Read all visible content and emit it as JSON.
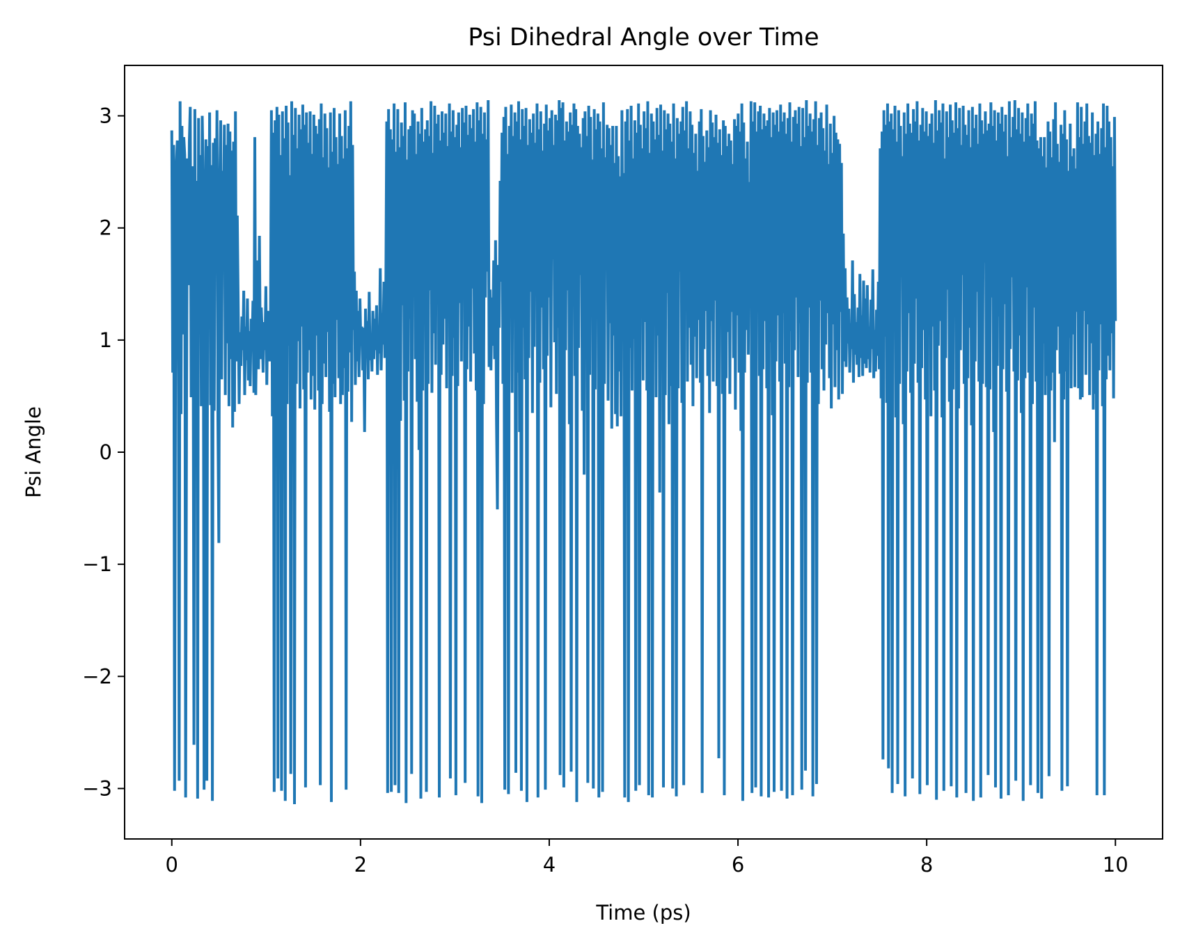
{
  "chart_data": {
    "type": "line",
    "title": "Psi Dihedral Angle over Time",
    "xlabel": "Time (ps)",
    "ylabel": "Psi Angle",
    "xlim": [
      -0.5,
      10.5
    ],
    "ylim": [
      -3.45,
      3.45
    ],
    "x_ticks": [
      0,
      2,
      4,
      6,
      8,
      10
    ],
    "y_ticks": [
      -3,
      -2,
      -1,
      0,
      1,
      2,
      3
    ],
    "x_tick_labels": [
      "0",
      "2",
      "4",
      "6",
      "8",
      "10"
    ],
    "y_tick_labels": [
      "−3",
      "−2",
      "−1",
      "0",
      "1",
      "2",
      "3"
    ],
    "grid": false,
    "legend": "none",
    "series": [
      {
        "color": "#1f77b4",
        "sample_interval_ps": 0.01,
        "x_start": 0,
        "x_end": 10,
        "values": [
          2.87,
          0.71,
          2.74,
          -3.02,
          0.65,
          2.59,
          2.78,
          1.32,
          -2.93,
          3.13,
          0.34,
          2.91,
          1.05,
          2.81,
          2.65,
          -3.08,
          0.45,
          2.62,
          1.49,
          2.77,
          3.08,
          0.49,
          2.55,
          1.87,
          -2.61,
          3.06,
          0.61,
          2.42,
          -3.09,
          2.98,
          1.08,
          2.65,
          0.41,
          3.0,
          2.45,
          -3.01,
          0.26,
          2.79,
          -2.93,
          2.73,
          1.34,
          3.03,
          0.42,
          2.56,
          -3.11,
          2.76,
          0.37,
          2.8,
          1.81,
          3.05,
          0.29,
          -0.81,
          2.41,
          2.96,
          0.65,
          2.51,
          1.98,
          2.92,
          0.51,
          2.74,
          0.97,
          2.93,
          0.41,
          2.86,
          0.83,
          2.69,
          0.22,
          2.77,
          0.36,
          3.04,
          0.81,
          2.11,
          1.31,
          0.43,
          1.07,
          0.77,
          1.21,
          0.91,
          1.44,
          0.51,
          1.12,
          0.82,
          1.37,
          0.64,
          1.08,
          0.59,
          1.19,
          0.92,
          1.35,
          0.53,
          2.81,
          0.51,
          1.15,
          1.71,
          0.74,
          1.93,
          0.83,
          1.29,
          1.06,
          0.71,
          1.16,
          0.91,
          1.48,
          0.6,
          1.26,
          1.02,
          0.81,
          1.13,
          3.05,
          0.32,
          2.85,
          -3.03,
          2.96,
          0.59,
          3.08,
          -2.91,
          3.01,
          0.48,
          2.65,
          -3.02,
          3.04,
          0.74,
          2.8,
          -3.11,
          3.09,
          0.43,
          2.94,
          0.95,
          2.47,
          -2.87,
          3.13,
          0.52,
          2.83,
          -3.14,
          3.07,
          0.61,
          2.71,
          0.99,
          3.01,
          0.39,
          2.88,
          1.12,
          3.1,
          0.56,
          2.92,
          -2.99,
          3.03,
          0.71,
          2.76,
          0.91,
          3.04,
          0.47,
          2.66,
          0.68,
          3.01,
          0.38,
          2.91,
          1.04,
          2.84,
          0.55,
          2.97,
          -2.97,
          3.11,
          0.43,
          2.63,
          0.79,
          3.02,
          0.67,
          2.89,
          1.07,
          2.54,
          0.36,
          3.03,
          -3.12,
          2.68,
          0.61,
          3.07,
          0.49,
          2.81,
          1.18,
          2.57,
          0.66,
          3.02,
          0.43,
          2.82,
          0.51,
          2.62,
          0.75,
          3.05,
          -3.01,
          2.71,
          0.54,
          2.91,
          0.89,
          3.13,
          0.27,
          2.74,
          1.09,
          1.61,
          0.6,
          1.44,
          0.81,
          1.26,
          0.67,
          1.37,
          0.95,
          1.12,
          0.73,
          1.11,
          0.18,
          1.28,
          0.87,
          1.17,
          0.65,
          1.43,
          0.82,
          1.06,
          0.72,
          1.26,
          0.83,
          1.19,
          0.91,
          1.31,
          0.69,
          1.12,
          0.88,
          1.64,
          0.73,
          1.24,
          0.96,
          1.52,
          0.84,
          1.39,
          2.95,
          -3.04,
          3.06,
          0.6,
          2.88,
          -3.03,
          2.79,
          0.71,
          3.11,
          -2.97,
          2.68,
          0.53,
          3.06,
          -3.04,
          2.72,
          0.28,
          2.94,
          1.31,
          2.82,
          0.46,
          3.12,
          -3.13,
          2.61,
          0.72,
          2.88,
          1.19,
          2.91,
          -2.87,
          3.05,
          1.81,
          3.02,
          0.83,
          2.66,
          0.45,
          2.95,
          0.02,
          2.84,
          -3.09,
          3.07,
          0.55,
          2.77,
          1.27,
          2.88,
          -3.03,
          2.96,
          0.61,
          2.82,
          1.44,
          3.13,
          0.53,
          2.67,
          1.06,
          3.09,
          0.78,
          2.93,
          1.62,
          3.01,
          -3.08,
          2.78,
          0.69,
          3.04,
          0.96,
          2.85,
          1.19,
          3.02,
          0.57,
          2.73,
          1.41,
          3.11,
          -2.91,
          2.86,
          0.68,
          3.05,
          1.02,
          2.81,
          -3.06,
          2.92,
          0.59,
          3.03,
          1.33,
          2.72,
          0.81,
          3.07,
          1.57,
          2.94,
          -2.95,
          3.09,
          0.74,
          2.83,
          1.12,
          3.01,
          0.63,
          2.89,
          1.46,
          3.06,
          0.88,
          2.77,
          0.55,
          3.12,
          -3.07,
          2.96,
          0.67,
          3.08,
          -3.13,
          2.84,
          0.43,
          3.03,
          1.38,
          2.79,
          1.61,
          3.14,
          0.76,
          1.45,
          0.73,
          1.38,
          0.95,
          1.71,
          0.83,
          1.89,
          0.29,
          -0.51,
          1.67,
          1.11,
          2.42,
          1.52,
          2.85,
          0.61,
          2.99,
          -3.01,
          3.08,
          0.85,
          2.66,
          -3.05,
          2.91,
          1.22,
          3.1,
          0.53,
          2.82,
          1.31,
          3.03,
          -2.86,
          2.95,
          0.71,
          3.13,
          0.18,
          2.79,
          -3.02,
          3.06,
          1.11,
          2.91,
          0.65,
          3.07,
          -3.12,
          2.74,
          0.84,
          2.97,
          1.43,
          2.85,
          0.35,
          3.02,
          0.94,
          2.76,
          1.57,
          3.11,
          -3.08,
          2.88,
          0.62,
          3.04,
          1.29,
          2.69,
          0.74,
          2.93,
          -3.01,
          3.1,
          0.86,
          2.87,
          1.38,
          2.98,
          0.4,
          3.05,
          1.72,
          2.74,
          0.98,
          3.01,
          0.52,
          2.96,
          1.11,
          3.14,
          -2.88,
          3.07,
          0.66,
          3.12,
          -2.99,
          2.78,
          0.91,
          2.95,
          1.44,
          2.86,
          0.25,
          3.03,
          -2.85,
          2.92,
          1.37,
          3.11,
          0.68,
          3.06,
          -3.12,
          2.91,
          0.93,
          2.84,
          1.58,
          2.72,
          0.37,
          2.98,
          -0.2,
          3.04,
          1.31,
          2.82,
          -2.95,
          3.09,
          0.69,
          2.99,
          1.45,
          2.61,
          -3.0,
          3.06,
          0.56,
          2.88,
          1.28,
          3.02,
          -3.08,
          2.95,
          0.79,
          2.71,
          -3.03,
          3.12,
          0.61,
          2.63,
          1.87,
          2.92,
          0.46,
          2.89,
          1.15,
          2.74,
          0.21,
          2.91,
          1.04,
          2.58,
          0.34,
          2.91,
          0.23,
          2.64,
          0.72,
          2.46,
          0.32,
          3.05,
          1.31,
          2.49,
          -3.08,
          2.95,
          0.75,
          3.06,
          -3.12,
          2.78,
          0.93,
          3.09,
          0.55,
          2.62,
          1.01,
          2.96,
          -3.02,
          2.85,
          0.47,
          3.11,
          -2.97,
          2.92,
          1.23,
          2.71,
          0.64,
          3.04,
          1.16,
          2.89,
          0.55,
          3.13,
          -3.06,
          2.67,
          0.82,
          3.02,
          -3.08,
          2.95,
          1.32,
          2.79,
          0.49,
          3.07,
          1.04,
          2.83,
          -0.36,
          3.1,
          0.76,
          2.69,
          -2.99,
          3.05,
          0.51,
          2.88,
          1.42,
          3.02,
          0.25,
          2.93,
          0.59,
          2.77,
          -3.0,
          3.11,
          0.94,
          2.62,
          -3.07,
          2.98,
          0.57,
          2.84,
          1.61,
          2.95,
          0.44,
          3.08,
          -2.97,
          2.87,
          1.26,
          3.13,
          0.63,
          2.71,
          1.11,
          3.04,
          0.78,
          2.92,
          0.41,
          2.67,
          1.03,
          2.84,
          0.66,
          2.51,
          1.18,
          2.95,
          0.62,
          3.06,
          -3.04,
          2.82,
          0.92,
          2.59,
          1.26,
          2.87,
          0.68,
          2.72,
          0.35,
          3.05,
          1.17,
          2.94,
          0.63,
          2.81,
          1.35,
          3.01,
          0.59,
          2.76,
          -2.73,
          2.88,
          1.13,
          2.65,
          0.52,
          2.96,
          -3.06,
          2.91,
          0.66,
          2.73,
          1.07,
          2.84,
          0.52,
          2.78,
          1.25,
          2.57,
          0.84,
          2.97,
          0.38,
          2.91,
          1.22,
          3.02,
          0.71,
          2.86,
          0.19,
          3.11,
          -3.11,
          2.94,
          0.71,
          2.62,
          1.09,
          2.77,
          0.87,
          2.41,
          1.29,
          3.13,
          -3.04,
          2.95,
          0.81,
          3.12,
          -2.99,
          2.86,
          1.43,
          3.04,
          0.68,
          3.09,
          -3.07,
          2.88,
          0.74,
          3.02,
          1.17,
          2.91,
          0.57,
          2.96,
          -3.08,
          3.07,
          0.98,
          2.81,
          0.33,
          3.03,
          -3.03,
          2.92,
          0.81,
          3.05,
          1.22,
          2.86,
          0.63,
          3.1,
          -3.02,
          2.95,
          1.24,
          3.03,
          0.79,
          2.84,
          -3.09,
          2.98,
          0.58,
          3.12,
          1.08,
          2.77,
          -3.06,
          2.99,
          0.91,
          3.05,
          1.38,
          2.93,
          0.67,
          3.08,
          1.15,
          2.73,
          -3.01,
          3.07,
          0.84,
          2.81,
          -2.84,
          3.14,
          0.62,
          2.91,
          1.29,
          3.02,
          0.71,
          2.86,
          -3.07,
          2.97,
          0.53,
          3.13,
          -2.96,
          2.74,
          0.43,
          2.98,
          1.35,
          3.03,
          0.74,
          2.89,
          0.55,
          2.69,
          0.96,
          3.1,
          1.24,
          2.57,
          0.66,
          2.93,
          0.39,
          2.67,
          1.14,
          3.0,
          0.58,
          2.85,
          0.91,
          2.79,
          0.47,
          2.75,
          1.25,
          2.58,
          0.52,
          1.95,
          0.81,
          1.64,
          0.76,
          1.38,
          0.97,
          1.28,
          0.71,
          1.15,
          0.92,
          1.71,
          0.62,
          1.41,
          0.87,
          1.16,
          0.78,
          1.29,
          0.67,
          1.59,
          0.84,
          1.22,
          0.68,
          1.53,
          0.79,
          1.37,
          0.75,
          1.49,
          0.83,
          1.12,
          0.71,
          1.36,
          0.92,
          1.63,
          0.66,
          1.09,
          0.72,
          1.27,
          0.86,
          1.52,
          0.74,
          2.71,
          0.48,
          2.86,
          -2.74,
          3.05,
          1.03,
          2.92,
          0.44,
          3.11,
          -2.82,
          2.95,
          0.64,
          3.02,
          -3.04,
          2.88,
          1.32,
          3.09,
          0.31,
          2.77,
          -2.96,
          3.05,
          0.61,
          2.91,
          1.56,
          2.64,
          0.25,
          3.03,
          -3.07,
          2.84,
          0.72,
          3.11,
          1.24,
          2.93,
          0.53,
          2.85,
          -2.91,
          3.06,
          0.79,
          2.95,
          1.37,
          3.13,
          0.62,
          2.78,
          -3.05,
          2.92,
          0.75,
          3.07,
          1.09,
          2.86,
          0.47,
          3.04,
          -2.97,
          2.82,
          1.46,
          2.93,
          0.32,
          3.02,
          1.12,
          2.76,
          0.55,
          3.14,
          -3.1,
          2.87,
          0.95,
          3.05,
          1.17,
          2.94,
          0.31,
          3.11,
          -3.02,
          2.62,
          0.84,
          3.04,
          1.45,
          2.81,
          0.45,
          3.1,
          -2.98,
          2.96,
          0.56,
          2.85,
          1.26,
          3.12,
          -3.08,
          2.89,
          0.39,
          3.07,
          0.91,
          2.74,
          1.58,
          3.09,
          0.61,
          2.92,
          -3.04,
          2.83,
          0.66,
          3.05,
          1.11,
          2.72,
          0.24,
          3.08,
          -3.11,
          2.89,
          0.81,
          3.01,
          1.43,
          2.75,
          0.63,
          3.11,
          -3.08,
          2.96,
          0.61,
          2.84,
          1.69,
          3.04,
          0.58,
          2.87,
          -2.88,
          2.93,
          0.56,
          3.12,
          1.38,
          2.91,
          0.18,
          3.05,
          -2.99,
          2.78,
          0.77,
          3.03,
          1.21,
          2.93,
          -3.09,
          3.08,
          0.74,
          2.86,
          1.32,
          3.01,
          0.54,
          2.64,
          -3.06,
          3.13,
          0.92,
          2.81,
          1.56,
          2.99,
          0.72,
          3.14,
          -2.93,
          2.88,
          0.64,
          3.07,
          1.04,
          2.84,
          0.35,
          3.03,
          -3.11,
          2.77,
          0.66,
          2.98,
          1.47,
          3.11,
          0.71,
          2.82,
          -2.97,
          3.02,
          0.43,
          2.93,
          1.29,
          3.13,
          0.63,
          2.78,
          -3.04,
          2.71,
          0.52,
          2.81,
          -3.09,
          2.64,
          0.97,
          2.81,
          0.51,
          2.54,
          0.68,
          2.95,
          -2.89,
          2.86,
          0.55,
          2.63,
          0.71,
          2.97,
          0.09,
          3.12,
          0.91,
          2.75,
          1.12,
          2.59,
          0.7,
          2.92,
          -3.02,
          2.84,
          0.47,
          3.05,
          0.72,
          2.79,
          -2.98,
          2.51,
          1.02,
          2.93,
          0.57,
          2.64,
          1.05,
          2.71,
          0.58,
          2.53,
          1.25,
          3.12,
          0.57,
          2.81,
          0.47,
          3.08,
          0.49,
          2.75,
          1.26,
          2.95,
          0.69,
          3.11,
          1.14,
          2.82,
          0.51,
          2.76,
          0.97,
          3.03,
          0.38,
          2.65,
          0.52,
          2.84,
          -3.06,
          2.95,
          0.73,
          2.66,
          1.14,
          2.89,
          0.41,
          3.11,
          -3.06,
          2.72,
          0.65,
          3.09,
          0.86,
          2.95,
          0.73,
          2.81,
          1.06,
          2.55,
          0.48,
          2.99,
          1.17
        ]
      }
    ]
  }
}
